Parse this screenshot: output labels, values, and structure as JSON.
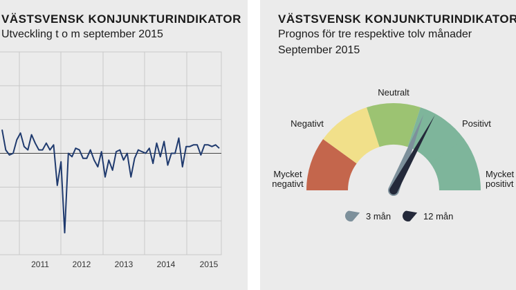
{
  "left_panel": {
    "title": "VÄSTSVENSK KONJUNKTURINDIKATOR",
    "subtitle": "Utveckling t o m september 2015"
  },
  "right_panel": {
    "title": "VÄSTSVENSK KONJUNKTURINDIKATOR",
    "subtitle_line1": "Prognos för tre respektive tolv månader",
    "subtitle_line2": "September 2015"
  },
  "chart_data": [
    {
      "type": "line",
      "title": "VÄSTSVENSK KONJUNKTURINDIKATOR",
      "subtitle": "Utveckling t o m september 2015",
      "x_tick_labels": [
        "2011",
        "2012",
        "2013",
        "2014",
        "2015"
      ],
      "ylim": [
        -3,
        3
      ],
      "grid": true,
      "line_color": "#1f3a6e",
      "x_start": "2010-04",
      "x_end": "2015-09",
      "series": [
        {
          "values": [
            0.7,
            0.1,
            -0.05,
            0.0,
            0.4,
            0.6,
            0.2,
            0.1,
            0.55,
            0.3,
            0.1,
            0.1,
            0.3,
            0.1,
            0.25,
            -0.95,
            -0.25,
            -2.35,
            0.0,
            -0.1,
            0.15,
            0.1,
            -0.15,
            -0.15,
            0.1,
            -0.2,
            -0.4,
            0.05,
            -0.7,
            -0.2,
            -0.5,
            0.05,
            0.1,
            -0.2,
            0.0,
            -0.7,
            -0.15,
            0.1,
            0.05,
            0.0,
            0.15,
            -0.3,
            0.3,
            -0.1,
            0.35,
            -0.35,
            0.0,
            0.0,
            0.45,
            -0.4,
            0.2,
            0.2,
            0.25,
            0.25,
            -0.05,
            0.25,
            0.25,
            0.2,
            0.25,
            0.15
          ]
        }
      ]
    },
    {
      "type": "gauge",
      "title": "VÄSTSVENSK KONJUNKTURINDIKATOR",
      "subtitle": "Prognos för tre respektive tolv månader",
      "subtitle2": "September 2015",
      "segments": [
        {
          "label": "Mycket negativt",
          "label_lines": [
            "Mycket",
            "negativt"
          ],
          "color": "#c4664c"
        },
        {
          "label": "Negativt",
          "label_lines": [
            "Negativt"
          ],
          "color": "#f1e08a"
        },
        {
          "label": "Neutralt",
          "label_lines": [
            "Neutralt"
          ],
          "color": "#9cc372"
        },
        {
          "label": "Positivt",
          "label_lines": [
            "Positivt"
          ],
          "color": "#7eb59b"
        },
        {
          "label": "Mycket positivt",
          "label_lines": [
            "Mycket",
            "positivt"
          ],
          "color": "#7eb59b"
        }
      ],
      "needles": [
        {
          "name": "3 mån",
          "level": 0.62,
          "color": "#7d909b"
        },
        {
          "name": "12 mån",
          "level": 0.66,
          "color": "#24293a"
        }
      ]
    }
  ]
}
